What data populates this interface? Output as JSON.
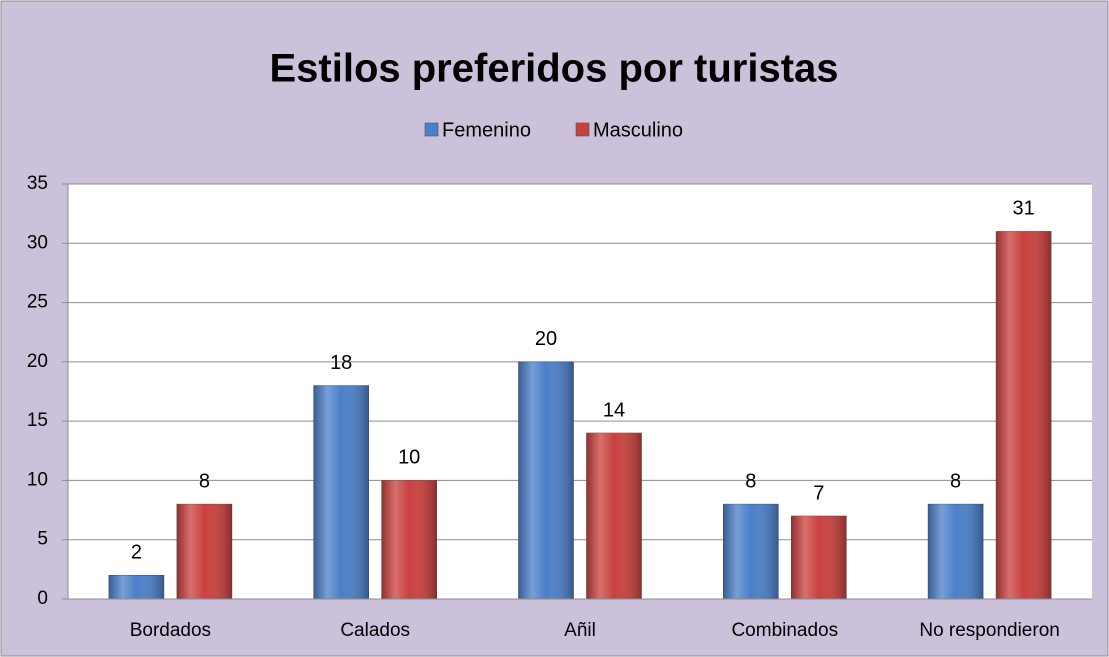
{
  "chart_data": {
    "type": "bar",
    "title": "Estilos preferidos por turistas",
    "categories": [
      "Bordados",
      "Calados",
      "Añil",
      "Combinados",
      "No respondieron"
    ],
    "series": [
      {
        "name": "Femenino",
        "color": "#4a7fc9",
        "values": [
          2,
          18,
          20,
          8,
          8
        ]
      },
      {
        "name": "Masculino",
        "color": "#c9403d",
        "values": [
          8,
          10,
          14,
          7,
          31
        ]
      }
    ],
    "ylim": [
      0,
      35
    ],
    "yticks": [
      0,
      5,
      10,
      15,
      20,
      25,
      30,
      35
    ],
    "grid": true,
    "legend": "top"
  }
}
